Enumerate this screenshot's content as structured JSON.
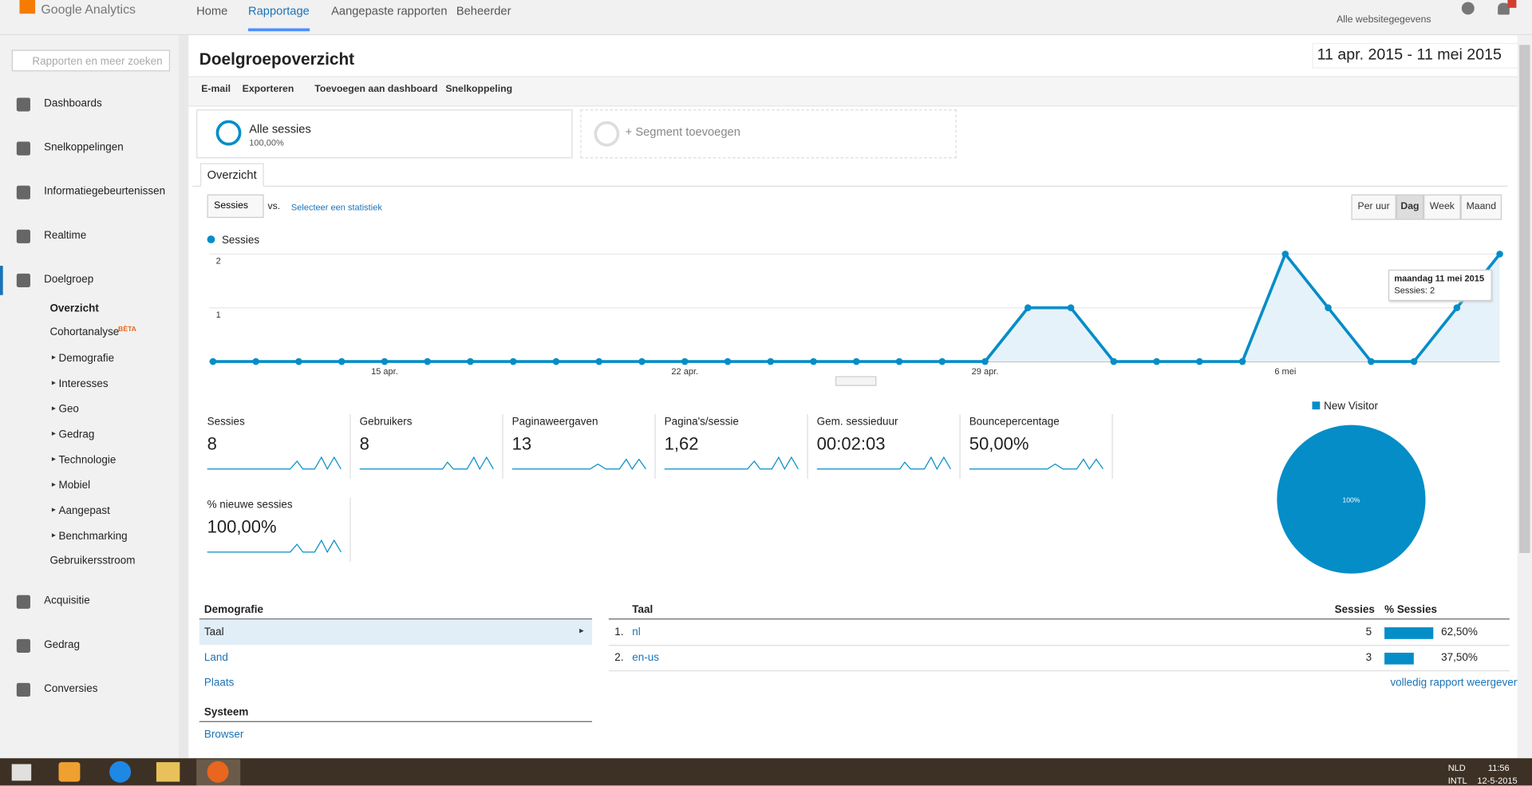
{
  "topbar": {
    "logo": "Google Analytics",
    "tabs": [
      "Home",
      "Rapportage",
      "Aangepaste rapporten",
      "Beheerder"
    ],
    "account": "Alle websitegegevens"
  },
  "sidebar": {
    "search_placeholder": "Rapporten en meer zoeken",
    "items_top": [
      "Dashboards",
      "Snelkoppelingen",
      "Informatiegebeurtenissen",
      "Realtime",
      "Doelgroep"
    ],
    "sub_items": [
      "Overzicht",
      "Cohortanalyse",
      "Demografie",
      "Interesses",
      "Geo",
      "Gedrag",
      "Technologie",
      "Mobiel",
      "Aangepast",
      "Benchmarking",
      "Gebruikersstroom"
    ],
    "beta": "BÈTA",
    "items_bottom": [
      "Acquisitie",
      "Gedrag",
      "Conversies"
    ]
  },
  "header": {
    "title": "Doelgroepoverzicht",
    "date_range": "11 apr. 2015 - 11 mei 2015"
  },
  "toolbar": [
    "E-mail",
    "Exporteren",
    "Toevoegen aan dashboard",
    "Snelkoppeling"
  ],
  "segments": {
    "name": "Alle sessies",
    "share": "100,00%",
    "add": "+ Segment toevoegen"
  },
  "tab": "Overzicht",
  "controls": {
    "metric": "Sessies",
    "vs": "vs.",
    "select": "Selecteer een statistiek",
    "granularity": [
      "Per uur",
      "Dag",
      "Week",
      "Maand"
    ]
  },
  "overview_chart": {
    "type": "line",
    "series_name": "Sessies",
    "color": "#058dc7",
    "categories": [
      null,
      null,
      null,
      null,
      "15 apr.",
      null,
      null,
      null,
      null,
      null,
      null,
      "22 apr.",
      null,
      null,
      null,
      null,
      null,
      null,
      "29 apr.",
      null,
      null,
      null,
      null,
      null,
      null,
      "6 mei",
      null,
      null,
      null,
      null,
      null
    ],
    "values": [
      0,
      0,
      0,
      0,
      0,
      0,
      0,
      0,
      0,
      0,
      0,
      0,
      0,
      0,
      0,
      0,
      0,
      0,
      0,
      1,
      1,
      0,
      0,
      0,
      0,
      2,
      1,
      0,
      0,
      1,
      2
    ],
    "ylim": [
      0,
      2
    ],
    "yticks": [
      1,
      2
    ],
    "grid": true,
    "tooltip": {
      "date": "maandag 11 mei 2015",
      "text": "Sessies: 2"
    }
  },
  "metrics": [
    {
      "label": "Sessies",
      "value": "8"
    },
    {
      "label": "Gebruikers",
      "value": "8"
    },
    {
      "label": "Paginaweergaven",
      "value": "13"
    },
    {
      "label": "Pagina's/sessie",
      "value": "1,62"
    },
    {
      "label": "Gem. sessieduur",
      "value": "00:02:03"
    },
    {
      "label": "Bouncepercentage",
      "value": "50,00%"
    },
    {
      "label": "% nieuwe sessies",
      "value": "100,00%"
    }
  ],
  "pie": {
    "type": "pie",
    "legend": [
      "New Visitor"
    ],
    "values": [
      100
    ],
    "value_labels": [
      "100%"
    ],
    "colors": [
      "#058dc7"
    ]
  },
  "demographics": {
    "title": "Demografie",
    "items": [
      "Taal",
      "Land",
      "Plaats"
    ],
    "system_title": "Systeem",
    "system_items": [
      "Browser"
    ]
  },
  "table": {
    "columns": [
      "Taal",
      "Sessies",
      "% Sessies"
    ],
    "rows": [
      {
        "rank": "1.",
        "name": "nl",
        "sessions": 5,
        "pct": 62.5,
        "pct_label": "62,50%"
      },
      {
        "rank": "2.",
        "name": "en-us",
        "sessions": 3,
        "pct": 37.5,
        "pct_label": "37,50%"
      }
    ],
    "link": "volledig rapport weergeven"
  },
  "taskbar": {
    "lang": "NLD",
    "layout": "INTL",
    "time": "11:56",
    "date": "12-5-2015"
  }
}
